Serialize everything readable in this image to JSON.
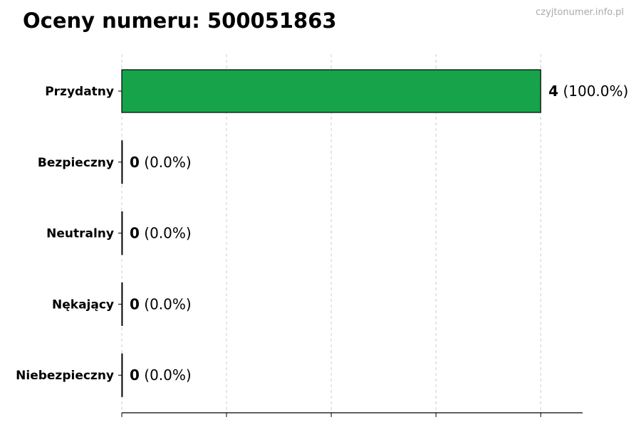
{
  "chart_data": {
    "type": "bar",
    "orientation": "horizontal",
    "title": "Oceny numeru: 500051863",
    "watermark": "czyjtonumer.info.pl",
    "categories": [
      "Przydatny",
      "Bezpieczny",
      "Neutralny",
      "Nękający",
      "Niebezpieczny"
    ],
    "values": [
      4,
      0,
      0,
      0,
      0
    ],
    "percentages": [
      "100.0%",
      "0.0%",
      "0.0%",
      "0.0%",
      "0.0%"
    ],
    "xlim": [
      0,
      4.4
    ],
    "xticks": [
      0,
      1,
      2,
      3,
      4
    ],
    "xtick_labels_shown": false,
    "grid": "x dashed",
    "bar_color": "#16a34a",
    "edge_color": "#000000",
    "legend": "none"
  }
}
